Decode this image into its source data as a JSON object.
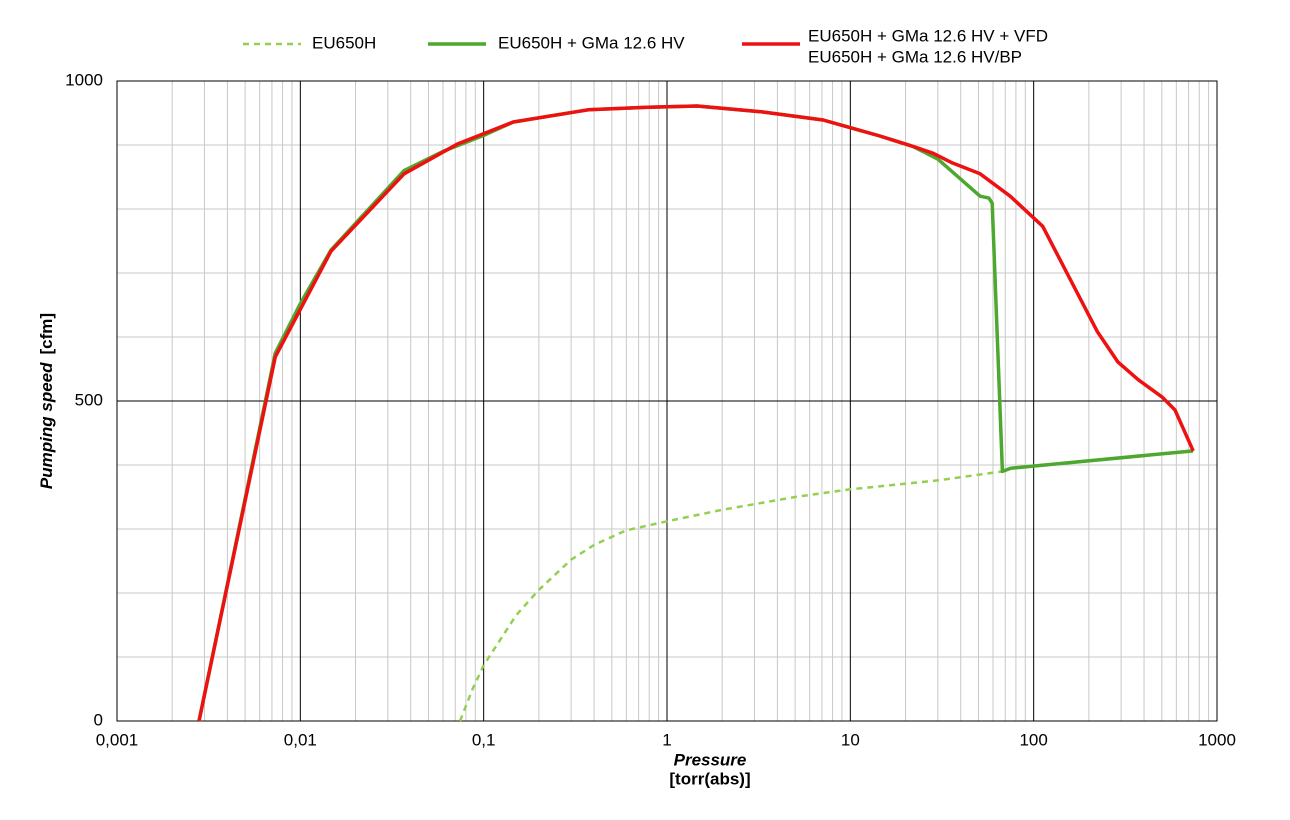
{
  "chart_data": {
    "type": "line",
    "xlabel": "Pressure",
    "xlabel_unit": "[torr(abs)]",
    "ylabel": "Pumping speed",
    "ylabel_unit": "[cfm]",
    "xscale": "log",
    "xlim": [
      0.001,
      1000
    ],
    "ylim": [
      0,
      1000
    ],
    "xticks": [
      {
        "value": 0.001,
        "label": "0,001"
      },
      {
        "value": 0.01,
        "label": "0,01"
      },
      {
        "value": 0.1,
        "label": "0,1"
      },
      1,
      10,
      100,
      1000
    ],
    "yticks": [
      0,
      500,
      1000
    ],
    "grid": true,
    "minor_grid": true,
    "legend": "top",
    "series": [
      {
        "name": "EU650H",
        "color": "#92d050",
        "dashed": true,
        "x": [
          0.0743,
          0.087,
          0.1,
          0.15,
          0.2,
          0.3,
          0.4,
          0.6,
          1,
          2,
          5,
          10,
          30,
          67.5
        ],
        "y": [
          0,
          50,
          87,
          165,
          205,
          252,
          275,
          298,
          312,
          330,
          350,
          362,
          376,
          390
        ]
      },
      {
        "name": "EU650H + GMa 12.6 HV",
        "color": "#4ea72e",
        "dashed": false,
        "x": [
          0.0028,
          0.0073,
          0.01,
          0.0147,
          0.0368,
          0.06,
          0.1,
          0.145,
          0.371,
          0.789,
          1.46,
          3.24,
          7.1,
          14.5,
          21.9,
          30,
          51,
          57,
          59.4,
          67.5,
          75,
          742
        ],
        "y": [
          0,
          575,
          652,
          736,
          860,
          890,
          915,
          936,
          955,
          959,
          961,
          952,
          939,
          914,
          898,
          878,
          820,
          817,
          809,
          390,
          395,
          422
        ]
      },
      {
        "name": [
          "EU650H  + GMa 12.6 HV + VFD",
          "EU650H  + GMa 12.6 HV/BP"
        ],
        "color": "#ee1111",
        "dashed": false,
        "x": [
          0.0028,
          0.0073,
          0.0147,
          0.0368,
          0.0725,
          0.145,
          0.371,
          0.789,
          1.46,
          3.24,
          7.1,
          14.5,
          21.9,
          28.3,
          36,
          51,
          74.5,
          112,
          223,
          288,
          373,
          503,
          590,
          742
        ],
        "y": [
          0,
          569,
          734,
          855,
          902,
          936,
          955,
          959,
          961,
          952,
          939,
          914,
          898,
          887,
          872,
          855,
          820,
          773,
          608,
          561,
          533,
          506,
          486,
          422
        ]
      }
    ]
  }
}
